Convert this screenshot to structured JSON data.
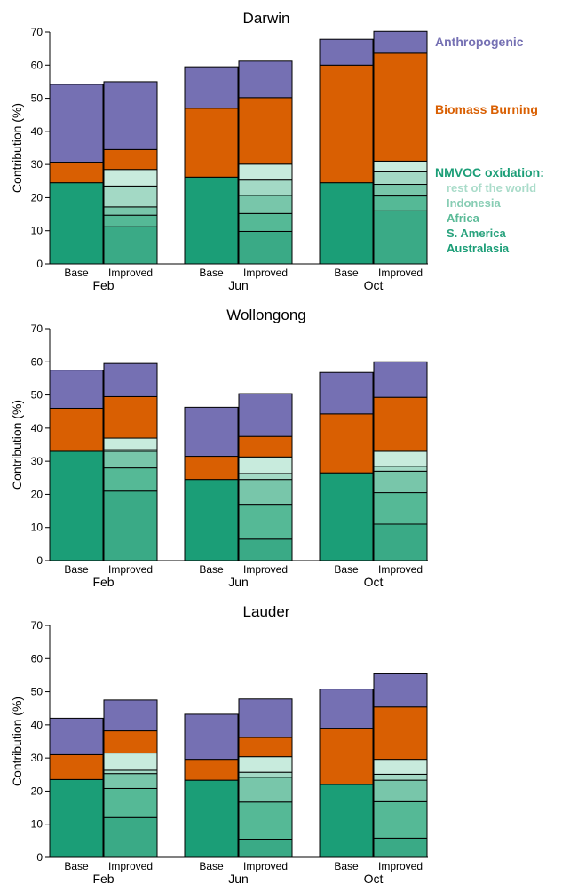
{
  "chart_data": [
    {
      "type": "bar",
      "stacked": true,
      "title": "Darwin",
      "ylabel": "Contribution (%)",
      "ylim": [
        0,
        70
      ],
      "yticks": [
        0,
        10,
        20,
        30,
        40,
        50,
        60,
        70
      ],
      "groups": [
        {
          "label": "Feb",
          "bars": [
            {
              "label": "Base",
              "segments": [
                24.5,
                6.2,
                23.5
              ]
            },
            {
              "label": "Improved",
              "segments": [
                11.2,
                3.5,
                2.5,
                6.3,
                5.0,
                6.0,
                20.5
              ]
            }
          ]
        },
        {
          "label": "Jun",
          "bars": [
            {
              "label": "Base",
              "segments": [
                26.2,
                20.8,
                12.5
              ]
            },
            {
              "label": "Improved",
              "segments": [
                9.8,
                5.4,
                5.5,
                4.6,
                4.8,
                20.1,
                11.0
              ]
            }
          ]
        },
        {
          "label": "Oct",
          "bars": [
            {
              "label": "Base",
              "segments": [
                24.5,
                35.5,
                7.8
              ]
            },
            {
              "label": "Improved",
              "segments": [
                16.0,
                4.5,
                3.5,
                3.8,
                3.2,
                32.6,
                6.6
              ]
            }
          ]
        }
      ]
    },
    {
      "type": "bar",
      "stacked": true,
      "title": "Wollongong",
      "ylabel": "Contribution (%)",
      "ylim": [
        0,
        70
      ],
      "yticks": [
        0,
        10,
        20,
        30,
        40,
        50,
        60,
        70
      ],
      "groups": [
        {
          "label": "Feb",
          "bars": [
            {
              "label": "Base",
              "segments": [
                33.0,
                13.0,
                11.5
              ]
            },
            {
              "label": "Improved",
              "segments": [
                21.0,
                7.0,
                5.0,
                0.5,
                3.5,
                12.5,
                10.0
              ]
            }
          ]
        },
        {
          "label": "Jun",
          "bars": [
            {
              "label": "Base",
              "segments": [
                24.5,
                7.0,
                14.8
              ]
            },
            {
              "label": "Improved",
              "segments": [
                6.5,
                10.5,
                7.5,
                1.8,
                5.0,
                6.2,
                12.9
              ]
            }
          ]
        },
        {
          "label": "Oct",
          "bars": [
            {
              "label": "Base",
              "segments": [
                26.5,
                17.8,
                12.5
              ]
            },
            {
              "label": "Improved",
              "segments": [
                11.0,
                9.5,
                6.5,
                1.5,
                4.5,
                16.3,
                10.7
              ]
            }
          ]
        }
      ]
    },
    {
      "type": "bar",
      "stacked": true,
      "title": "Lauder",
      "ylabel": "Contribution (%)",
      "ylim": [
        0,
        70
      ],
      "yticks": [
        0,
        10,
        20,
        30,
        40,
        50,
        60,
        70
      ],
      "groups": [
        {
          "label": "Feb",
          "bars": [
            {
              "label": "Base",
              "segments": [
                23.5,
                7.5,
                11.0
              ]
            },
            {
              "label": "Improved",
              "segments": [
                12.0,
                8.8,
                4.5,
                1.0,
                5.2,
                6.7,
                9.3
              ]
            }
          ]
        },
        {
          "label": "Jun",
          "bars": [
            {
              "label": "Base",
              "segments": [
                23.3,
                6.3,
                13.6
              ]
            },
            {
              "label": "Improved",
              "segments": [
                5.5,
                11.2,
                7.5,
                1.5,
                4.7,
                5.8,
                11.6
              ]
            }
          ]
        },
        {
          "label": "Oct",
          "bars": [
            {
              "label": "Base",
              "segments": [
                22.0,
                17.0,
                11.8
              ]
            },
            {
              "label": "Improved",
              "segments": [
                5.8,
                11.0,
                6.5,
                1.8,
                4.5,
                15.8,
                10.0
              ]
            }
          ]
        }
      ]
    }
  ],
  "legend": {
    "anthropogenic": "Anthropogenic",
    "biomass_burning": "Biomass Burning",
    "nmvoc_header": "NMVOC oxidation:",
    "rest_of_world": "rest of the world",
    "indonesia": "Indonesia",
    "africa": "Africa",
    "s_america": "S. America",
    "australasia": "Australasia"
  },
  "colors": {
    "anthropogenic": "#7570b3",
    "biomass_burning": "#d95f02",
    "base_nmvoc": "#1b9e77",
    "australasia": "#3aaa86",
    "s_america": "#55b996",
    "africa": "#78c6aa",
    "indonesia": "#a3d9c5",
    "rest_of_world": "#c8ebdd",
    "legend_nmvoc": "#1b9e77",
    "legend_australasia": "#1b9e77",
    "legend_s_america": "#2aa37e",
    "legend_africa": "#5bbb98",
    "legend_indonesia": "#88cdb4",
    "legend_rest_of_world": "#aadcca"
  }
}
